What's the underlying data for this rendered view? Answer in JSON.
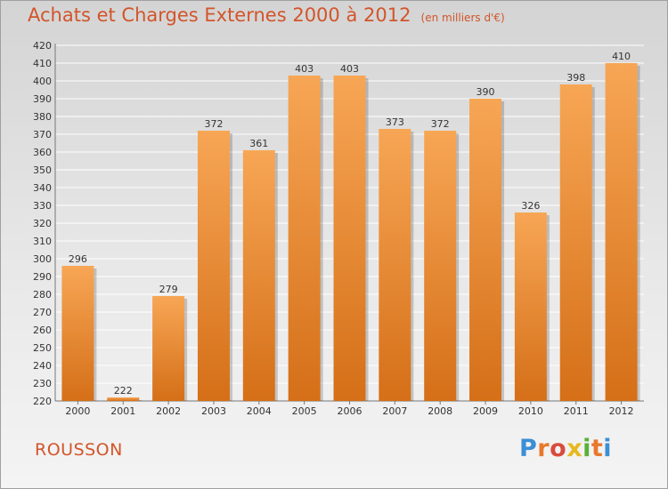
{
  "title": {
    "main": "Achats et Charges Externes 2000 à 2012",
    "unit": "(en milliers d'€)"
  },
  "commune": "ROUSSON",
  "logo": {
    "text": "Proxiti",
    "letter_colors": [
      "#3a8fd6",
      "#e8792b",
      "#d94b3c",
      "#e6b91e",
      "#5aaf3a",
      "#e8792b",
      "#3a8fd6"
    ]
  },
  "colors": {
    "bar_top": "#f7a655",
    "bar_bottom": "#d56f18",
    "text": "#d2552a",
    "grid": "#ffffff"
  },
  "chart_data": {
    "type": "bar",
    "title": "Achats et Charges Externes 2000 à 2012",
    "subtitle": "(en milliers d'€)",
    "xlabel": "",
    "ylabel": "",
    "categories": [
      "2000",
      "2001",
      "2002",
      "2003",
      "2004",
      "2005",
      "2006",
      "2007",
      "2008",
      "2009",
      "2010",
      "2011",
      "2012"
    ],
    "values": [
      296,
      222,
      279,
      372,
      361,
      403,
      403,
      373,
      372,
      390,
      326,
      398,
      410
    ],
    "ylim": [
      220,
      420
    ],
    "ytick_step": 10,
    "grid": true,
    "legend": "none"
  }
}
